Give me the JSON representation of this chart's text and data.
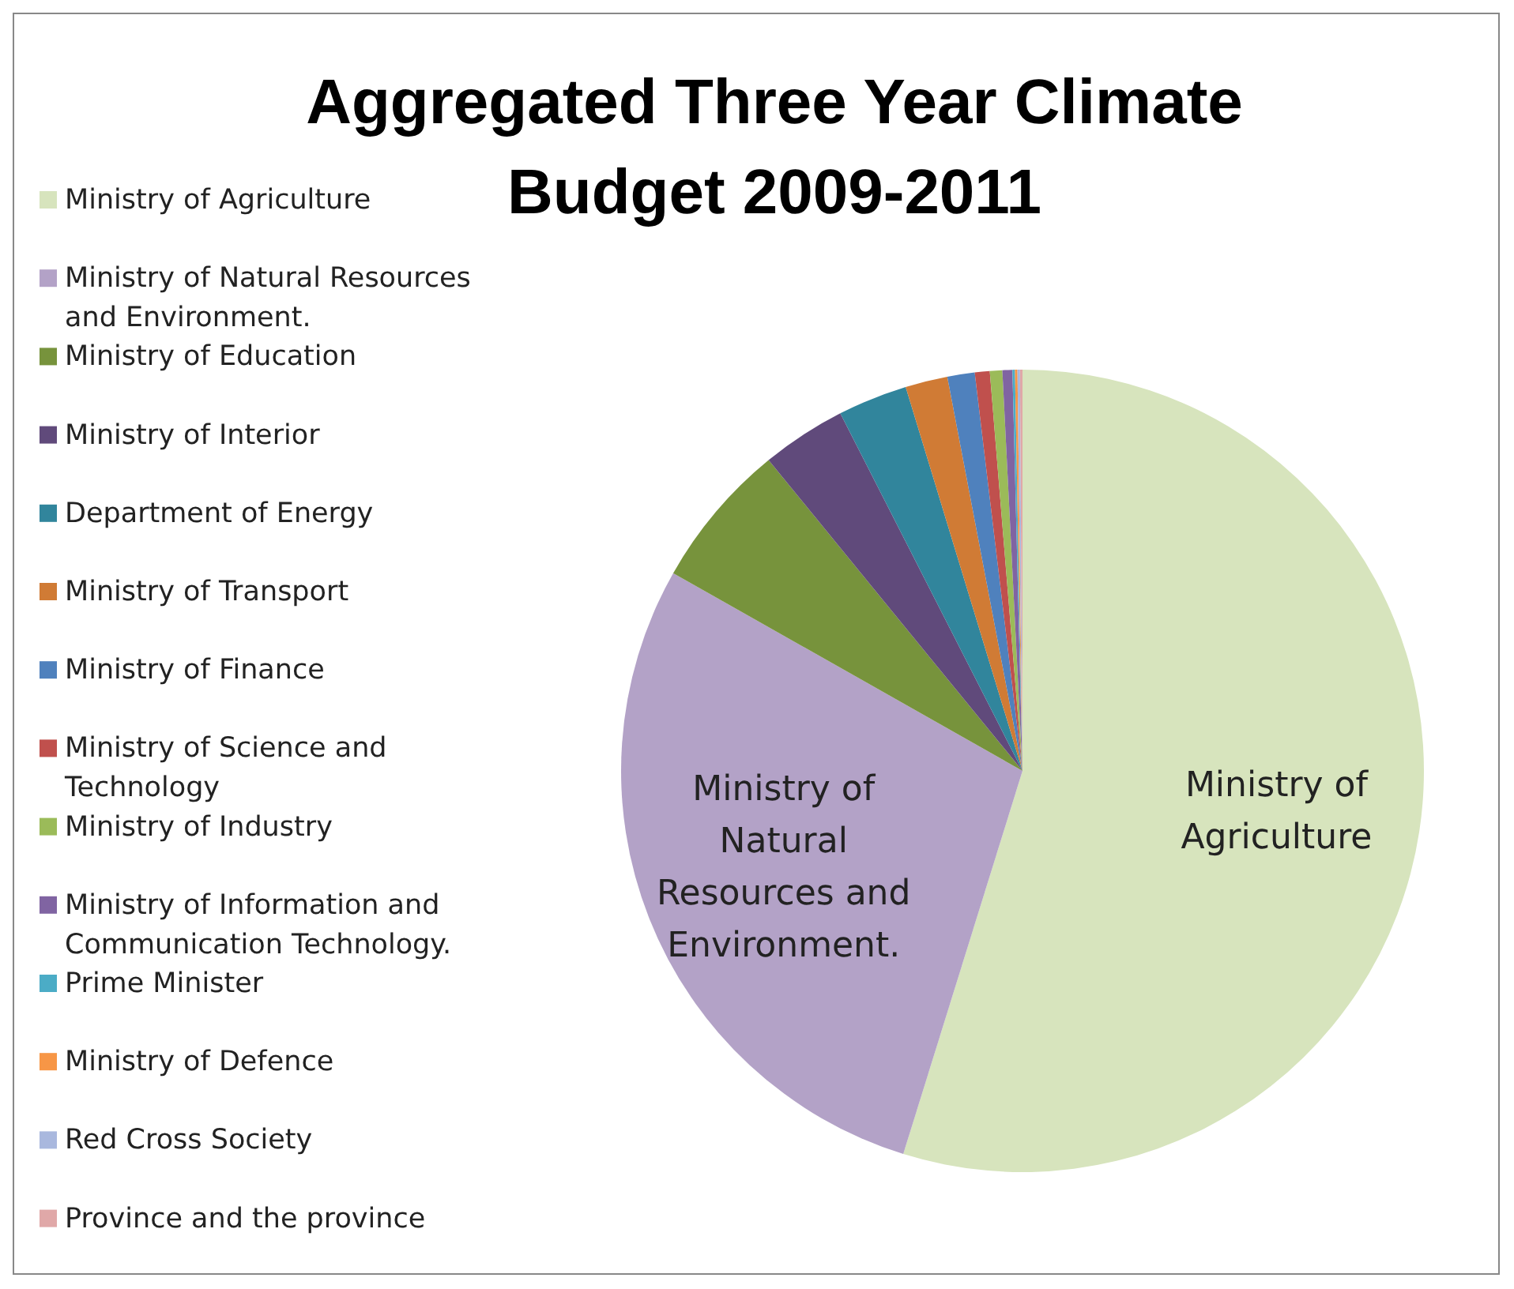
{
  "chart_data": {
    "type": "pie",
    "title": "Aggregated Three Year Climate Budget 2009-2011",
    "categories": [
      "Ministry of Agriculture",
      "Ministry of Natural Resources and Environment.",
      "Ministry of Education",
      "Ministry of Interior",
      "Department of Energy",
      "Ministry of Transport",
      "Ministry of Finance",
      "Ministry of Science and Technology",
      "Ministry of Industry",
      "Ministry of Information and Communication Technology.",
      "Prime Minister",
      "Ministry of Defence",
      "Red Cross Society",
      "Province and the province"
    ],
    "values": [
      54.8,
      28.4,
      5.9,
      3.4,
      2.8,
      1.7,
      1.1,
      0.6,
      0.5,
      0.4,
      0.1,
      0.1,
      0.1,
      0.1
    ],
    "colors": [
      "#d7e4bd",
      "#b3a2c7",
      "#77933c",
      "#604a7b",
      "#31859c",
      "#d07b35",
      "#4f81bd",
      "#c0504d",
      "#9bbb59",
      "#8064a2",
      "#4bacc6",
      "#f79646",
      "#a9b8de",
      "#e0a8a8"
    ],
    "legend": "left"
  }
}
